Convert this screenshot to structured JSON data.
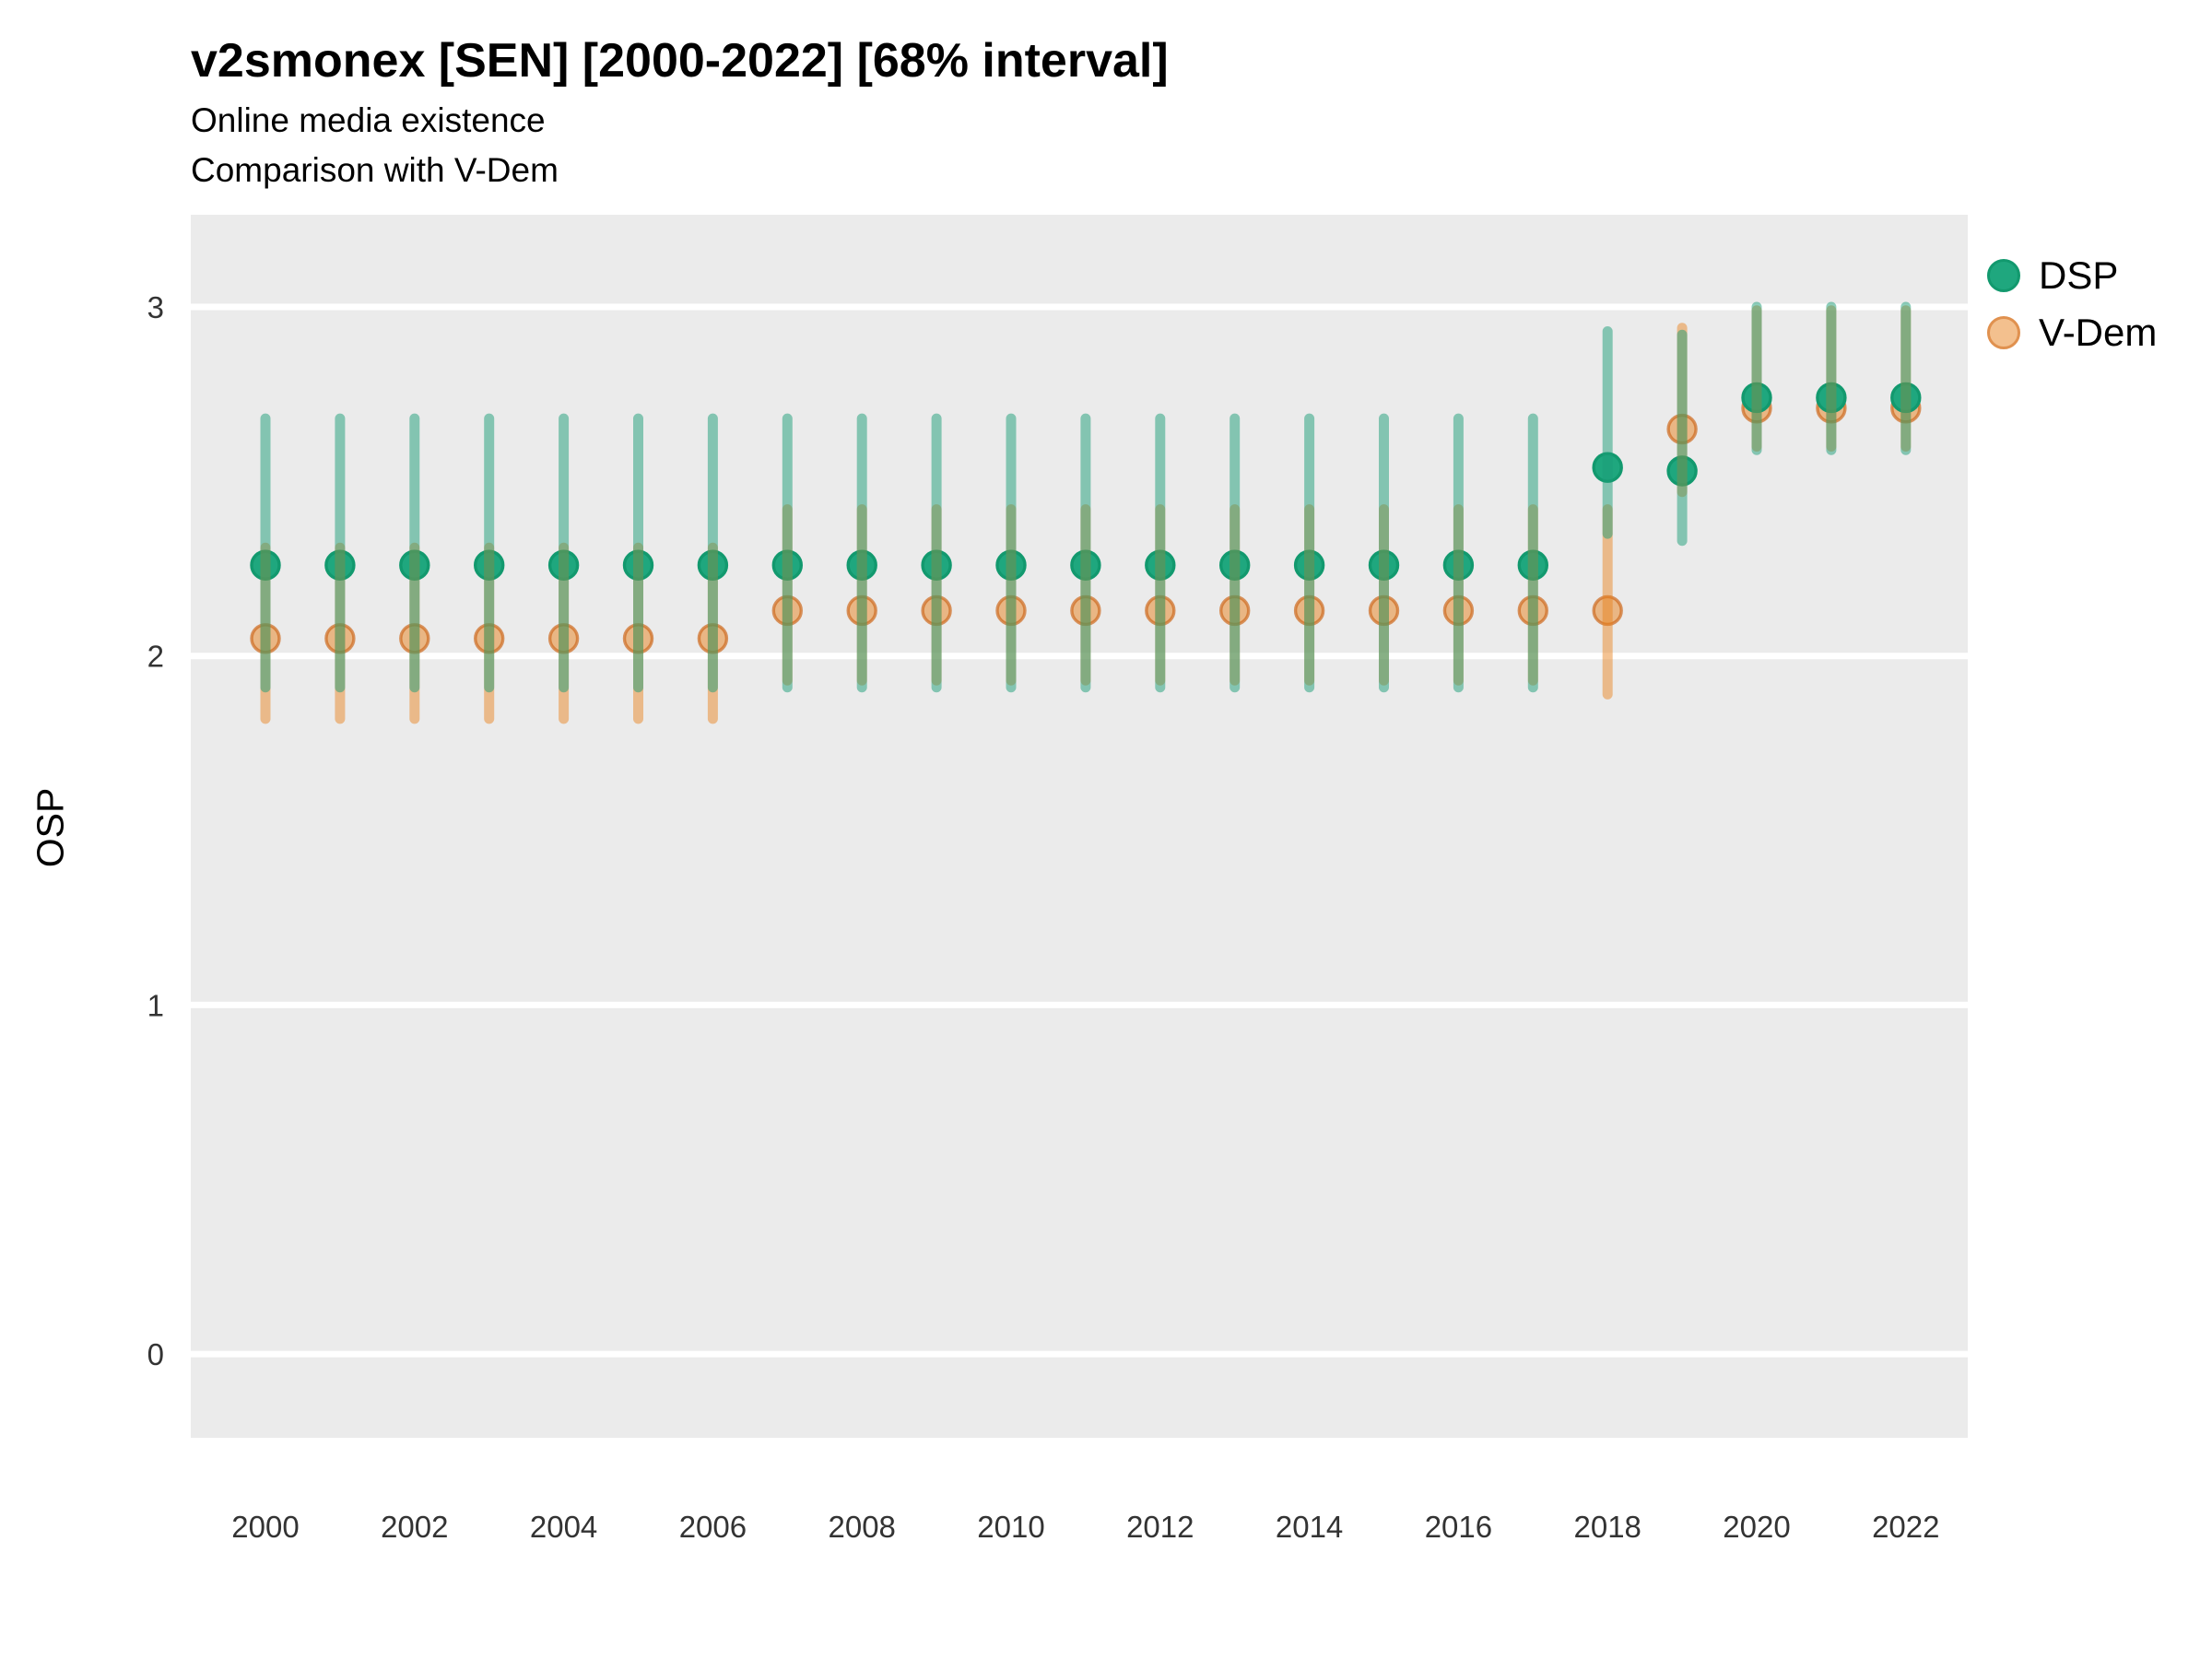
{
  "header": {
    "title": "v2smonex [SEN] [2000-2022] [68% interval]",
    "subtitle1": "Online media existence",
    "subtitle2": "Comparison with V-Dem"
  },
  "colors": {
    "dsp": "#1b9e77",
    "dsp_point_fill": "#1fa77e",
    "dsp_point_stroke": "#12996e",
    "vdem": "#e8821e",
    "vdem_point_stroke": "#cd691e",
    "panel_background": "#ebebeb",
    "gridline": "#ffffff",
    "axis_text": "#333333"
  },
  "chart_data": {
    "type": "pointrange",
    "title": "v2smonex [SEN] [2000-2022] [68% interval]",
    "subtitle": [
      "Online media existence",
      "Comparison with V-Dem"
    ],
    "xlabel": "",
    "ylabel": "OSP",
    "interval": "68%",
    "ylim": [
      -0.25,
      3.26
    ],
    "y_ticks": [
      0,
      1,
      2,
      3
    ],
    "y_tick_labels": [
      "0",
      "1",
      "2",
      "3"
    ],
    "x_ticks": [
      2000,
      2002,
      2004,
      2006,
      2008,
      2010,
      2012,
      2014,
      2016,
      2018,
      2020,
      2022
    ],
    "x_tick_labels": [
      "2000",
      "2002",
      "2004",
      "2006",
      "2008",
      "2010",
      "2012",
      "2014",
      "2016",
      "2018",
      "2020",
      "2022"
    ],
    "grid": "major-horizontal-only",
    "legend_position": "right",
    "series": [
      {
        "name": "DSP",
        "points": [
          {
            "year": 2000,
            "est": 2.26,
            "lo": 1.91,
            "hi": 2.68
          },
          {
            "year": 2001,
            "est": 2.26,
            "lo": 1.91,
            "hi": 2.68
          },
          {
            "year": 2002,
            "est": 2.26,
            "lo": 1.91,
            "hi": 2.68
          },
          {
            "year": 2003,
            "est": 2.26,
            "lo": 1.91,
            "hi": 2.68
          },
          {
            "year": 2004,
            "est": 2.26,
            "lo": 1.91,
            "hi": 2.68
          },
          {
            "year": 2005,
            "est": 2.26,
            "lo": 1.91,
            "hi": 2.68
          },
          {
            "year": 2006,
            "est": 2.26,
            "lo": 1.91,
            "hi": 2.68
          },
          {
            "year": 2007,
            "est": 2.26,
            "lo": 1.91,
            "hi": 2.68
          },
          {
            "year": 2008,
            "est": 2.26,
            "lo": 1.91,
            "hi": 2.68
          },
          {
            "year": 2009,
            "est": 2.26,
            "lo": 1.91,
            "hi": 2.68
          },
          {
            "year": 2010,
            "est": 2.26,
            "lo": 1.91,
            "hi": 2.68
          },
          {
            "year": 2011,
            "est": 2.26,
            "lo": 1.91,
            "hi": 2.68
          },
          {
            "year": 2012,
            "est": 2.26,
            "lo": 1.91,
            "hi": 2.68
          },
          {
            "year": 2013,
            "est": 2.26,
            "lo": 1.91,
            "hi": 2.68
          },
          {
            "year": 2014,
            "est": 2.26,
            "lo": 1.91,
            "hi": 2.68
          },
          {
            "year": 2015,
            "est": 2.26,
            "lo": 1.91,
            "hi": 2.68
          },
          {
            "year": 2016,
            "est": 2.26,
            "lo": 1.91,
            "hi": 2.68
          },
          {
            "year": 2017,
            "est": 2.26,
            "lo": 1.91,
            "hi": 2.68
          },
          {
            "year": 2018,
            "est": 2.54,
            "lo": 2.35,
            "hi": 2.93
          },
          {
            "year": 2019,
            "est": 2.53,
            "lo": 2.33,
            "hi": 2.92
          },
          {
            "year": 2020,
            "est": 2.74,
            "lo": 2.59,
            "hi": 3.0
          },
          {
            "year": 2021,
            "est": 2.74,
            "lo": 2.59,
            "hi": 3.0
          },
          {
            "year": 2022,
            "est": 2.74,
            "lo": 2.59,
            "hi": 3.0
          }
        ]
      },
      {
        "name": "V-Dem",
        "points": [
          {
            "year": 2000,
            "est": 2.05,
            "lo": 1.82,
            "hi": 2.31
          },
          {
            "year": 2001,
            "est": 2.05,
            "lo": 1.82,
            "hi": 2.31
          },
          {
            "year": 2002,
            "est": 2.05,
            "lo": 1.82,
            "hi": 2.31
          },
          {
            "year": 2003,
            "est": 2.05,
            "lo": 1.82,
            "hi": 2.31
          },
          {
            "year": 2004,
            "est": 2.05,
            "lo": 1.82,
            "hi": 2.31
          },
          {
            "year": 2005,
            "est": 2.05,
            "lo": 1.82,
            "hi": 2.31
          },
          {
            "year": 2006,
            "est": 2.05,
            "lo": 1.82,
            "hi": 2.31
          },
          {
            "year": 2007,
            "est": 2.13,
            "lo": 1.93,
            "hi": 2.42
          },
          {
            "year": 2008,
            "est": 2.13,
            "lo": 1.93,
            "hi": 2.42
          },
          {
            "year": 2009,
            "est": 2.13,
            "lo": 1.93,
            "hi": 2.42
          },
          {
            "year": 2010,
            "est": 2.13,
            "lo": 1.93,
            "hi": 2.42
          },
          {
            "year": 2011,
            "est": 2.13,
            "lo": 1.93,
            "hi": 2.42
          },
          {
            "year": 2012,
            "est": 2.13,
            "lo": 1.93,
            "hi": 2.42
          },
          {
            "year": 2013,
            "est": 2.13,
            "lo": 1.93,
            "hi": 2.42
          },
          {
            "year": 2014,
            "est": 2.13,
            "lo": 1.93,
            "hi": 2.42
          },
          {
            "year": 2015,
            "est": 2.13,
            "lo": 1.93,
            "hi": 2.42
          },
          {
            "year": 2016,
            "est": 2.13,
            "lo": 1.93,
            "hi": 2.42
          },
          {
            "year": 2017,
            "est": 2.13,
            "lo": 1.93,
            "hi": 2.42
          },
          {
            "year": 2018,
            "est": 2.13,
            "lo": 1.89,
            "hi": 2.42
          },
          {
            "year": 2019,
            "est": 2.65,
            "lo": 2.47,
            "hi": 2.94
          },
          {
            "year": 2020,
            "est": 2.71,
            "lo": 2.6,
            "hi": 2.99
          },
          {
            "year": 2021,
            "est": 2.71,
            "lo": 2.6,
            "hi": 2.99
          },
          {
            "year": 2022,
            "est": 2.71,
            "lo": 2.6,
            "hi": 2.99
          }
        ]
      }
    ]
  },
  "legend": {
    "items": [
      {
        "label": "DSP"
      },
      {
        "label": "V-Dem"
      }
    ]
  }
}
